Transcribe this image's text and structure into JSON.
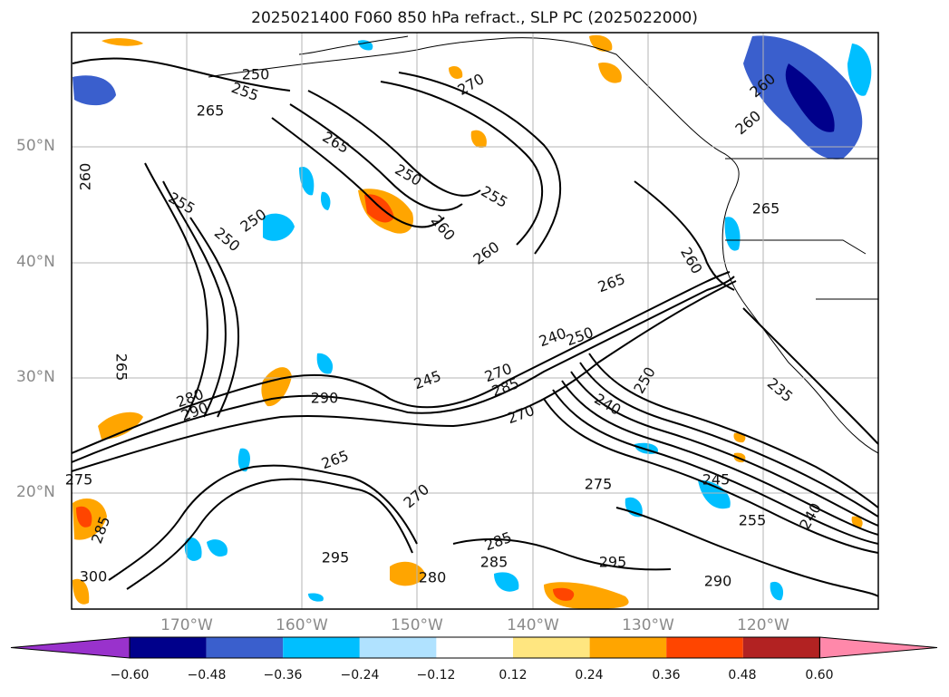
{
  "title": "2025021400 F060 850 hPa refract., SLP PC (2025022000)",
  "lat_labels": [
    "50°N",
    "40°N",
    "30°N",
    "20°N"
  ],
  "lon_labels": [
    "170°W",
    "160°W",
    "150°W",
    "140°W",
    "130°W",
    "120°W"
  ],
  "colorbar": {
    "ticks": [
      "−0.60",
      "−0.48",
      "−0.36",
      "−0.24",
      "−0.12",
      "0.12",
      "0.24",
      "0.36",
      "0.48",
      "0.60"
    ],
    "colors": [
      "#9932cc",
      "#00008b",
      "#3a5fcd",
      "#00bfff",
      "#b0e2ff",
      "#ffffff",
      "#ffe680",
      "#ffa500",
      "#ff4500",
      "#b22222",
      "#ff88aa"
    ]
  },
  "contour_labels": [
    "250",
    "255",
    "265",
    "270",
    "260",
    "260",
    "260",
    "255",
    "250",
    "250",
    "250",
    "265",
    "260",
    "260",
    "255",
    "265",
    "260",
    "265",
    "250",
    "235",
    "240",
    "250",
    "245",
    "270",
    "285",
    "270",
    "290",
    "280",
    "290",
    "265",
    "265",
    "275",
    "240",
    "245",
    "255",
    "285",
    "295",
    "280",
    "285",
    "295",
    "290",
    "240",
    "275",
    "270",
    "300",
    "285"
  ]
}
